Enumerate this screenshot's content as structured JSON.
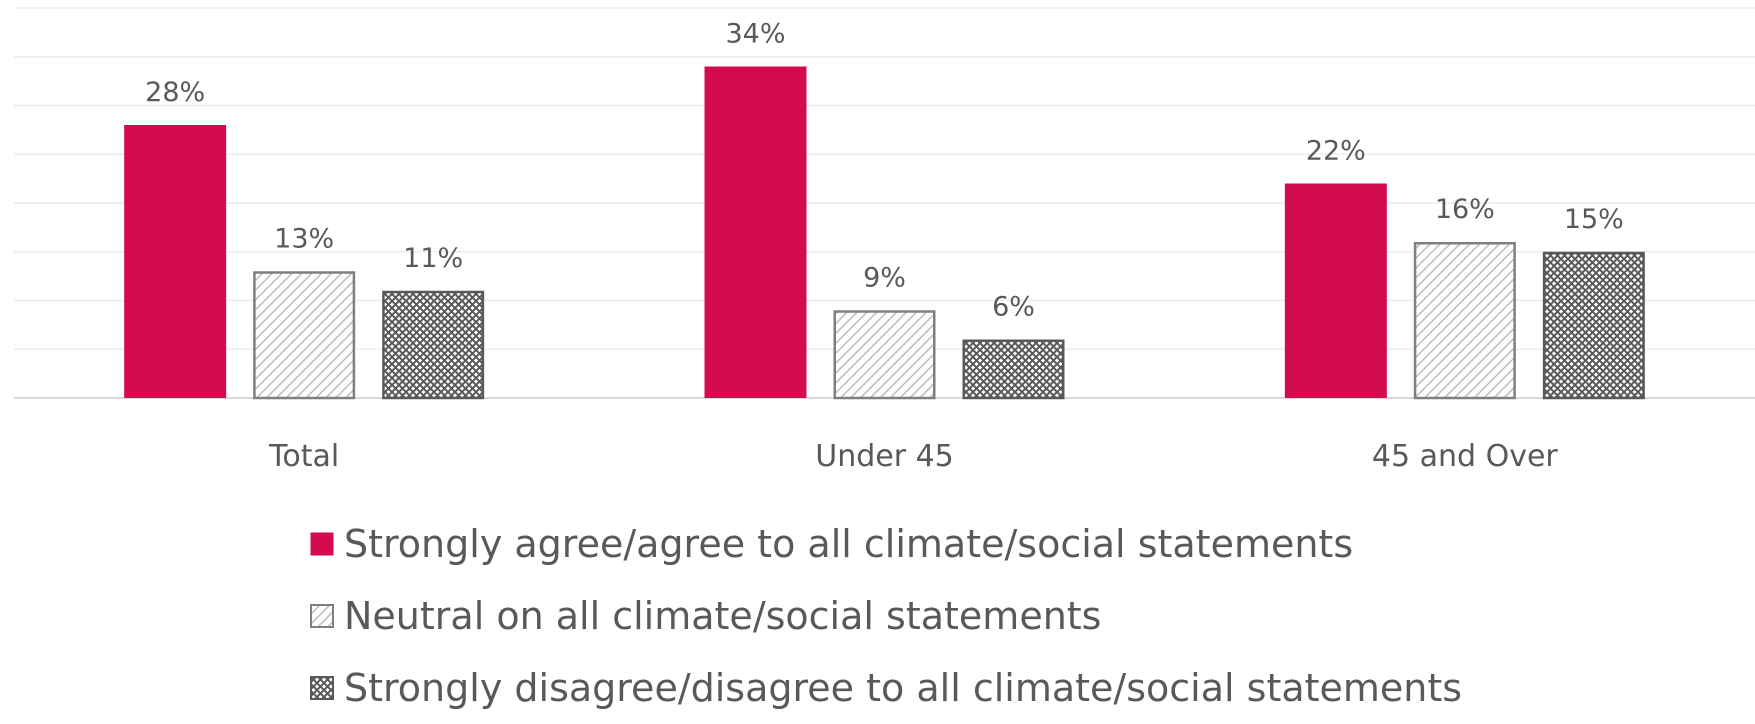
{
  "chart_data": {
    "type": "bar",
    "categories": [
      "Total",
      "Under 45",
      "45 and Over"
    ],
    "series": [
      {
        "name": "Strongly agree/agree to all climate/social statements",
        "values": [
          28,
          34,
          22
        ],
        "color": "#D50B52",
        "pattern": "solid"
      },
      {
        "name": "Neutral on all climate/social statements",
        "values": [
          13,
          9,
          16
        ],
        "color": "#7F7F7F",
        "pattern": "diagonal-hatch"
      },
      {
        "name": "Strongly disagree/disagree to all climate/social statements",
        "values": [
          11,
          6,
          15
        ],
        "color": "#595959",
        "pattern": "dense-crosshatch"
      }
    ],
    "data_labels": [
      [
        "28%",
        "34%",
        "22%"
      ],
      [
        "13%",
        "9%",
        "16%"
      ],
      [
        "11%",
        "6%",
        "15%"
      ]
    ],
    "ylim": [
      0,
      40
    ],
    "grid": true,
    "legend_position": "bottom",
    "title": "",
    "xlabel": "",
    "ylabel": ""
  }
}
